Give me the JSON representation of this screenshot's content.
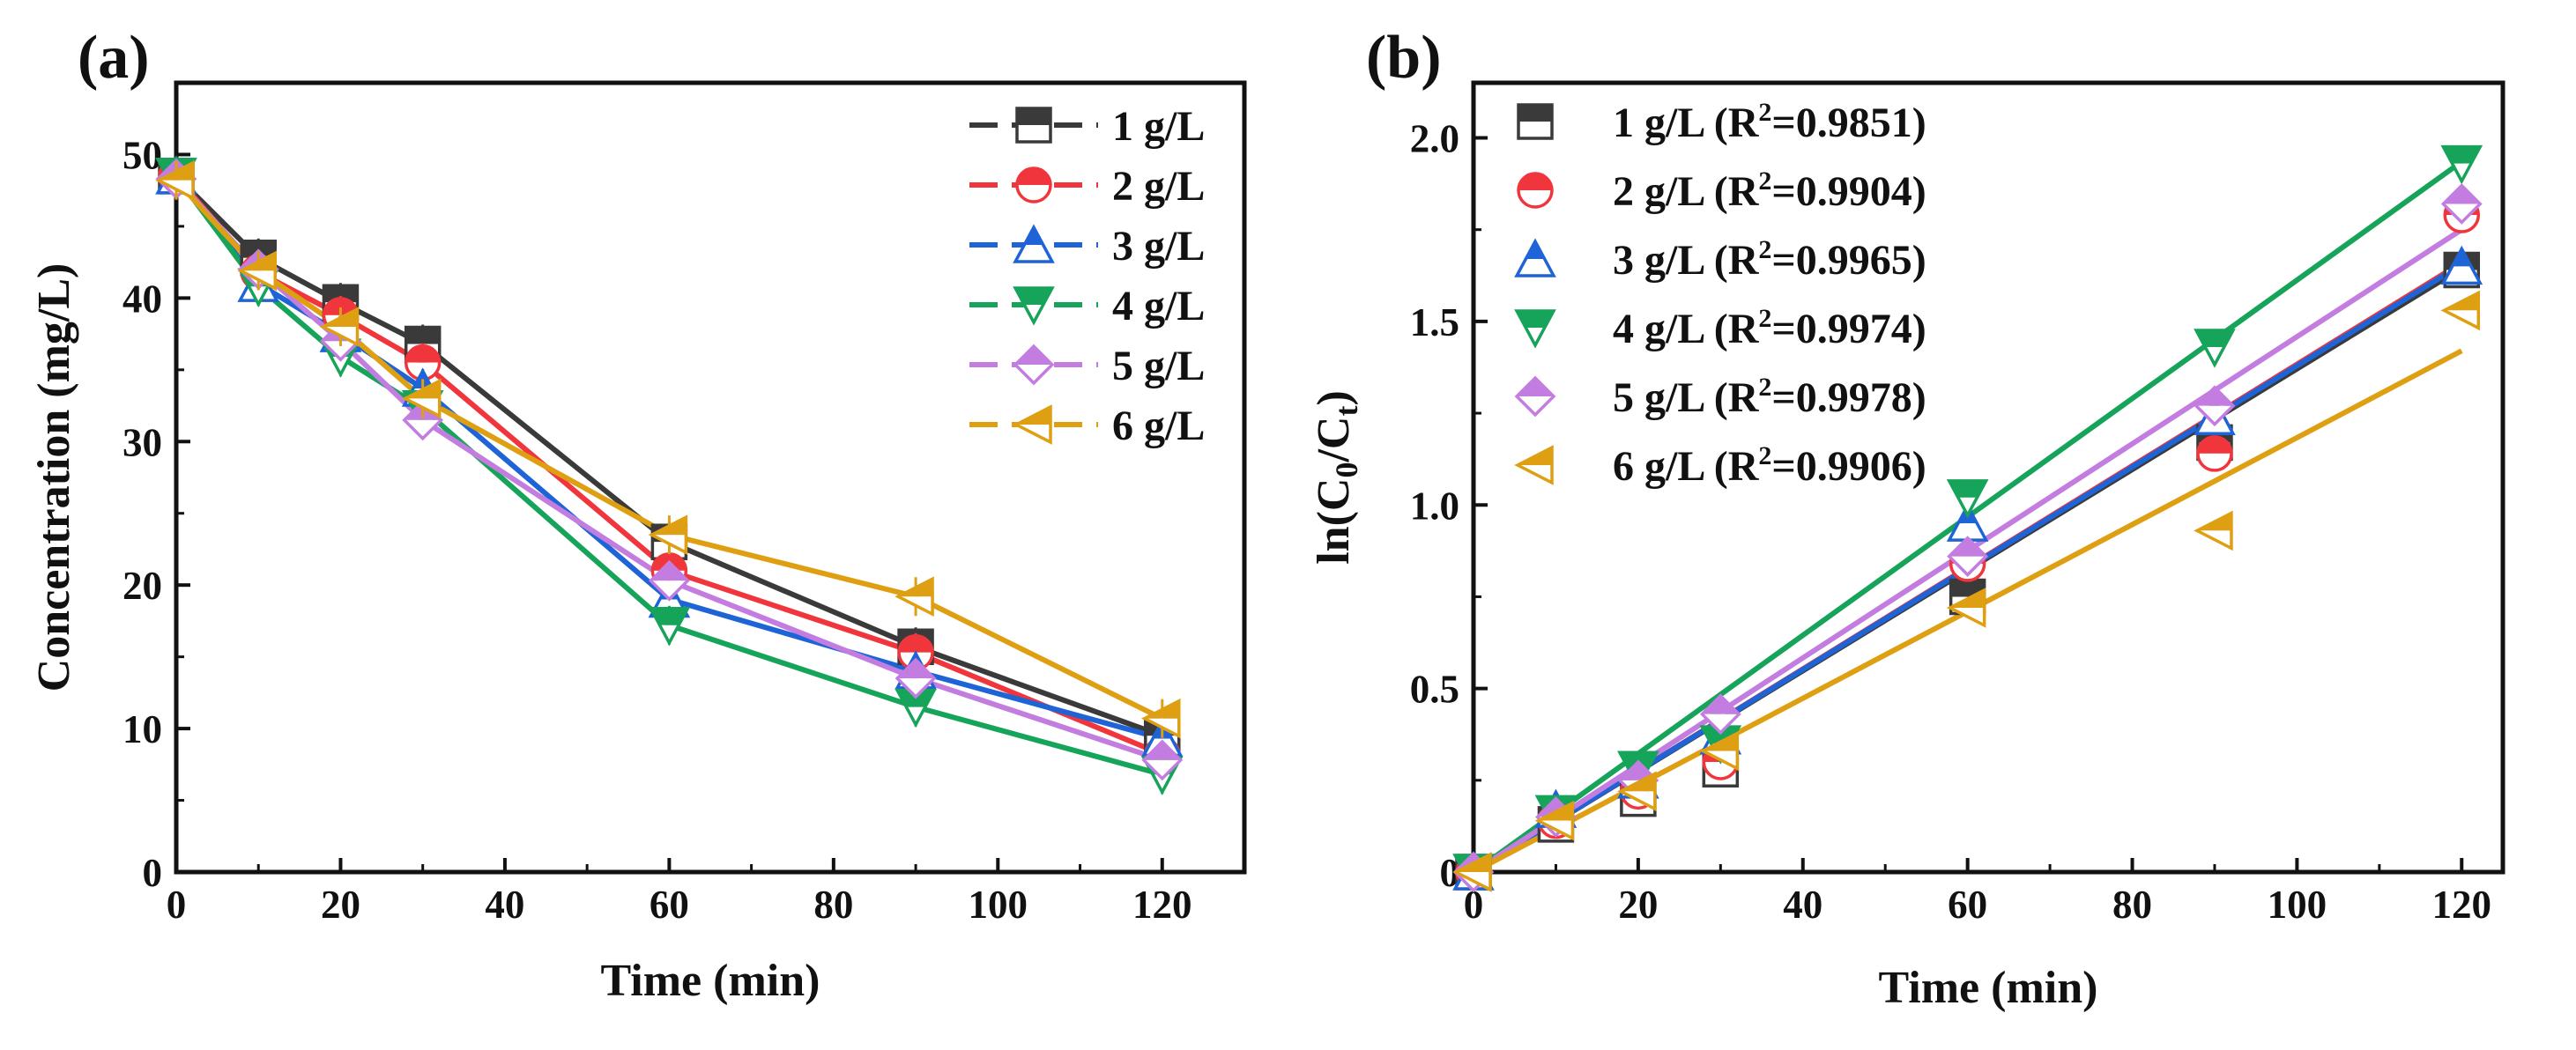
{
  "chart_data": [
    {
      "type": "line",
      "panel_label": "(a)",
      "xlabel": "Time (min)",
      "ylabel": "Concentration (mg/L)",
      "xlim": [
        0,
        130
      ],
      "ylim": [
        0,
        55
      ],
      "xticks": [
        0,
        20,
        40,
        60,
        80,
        100,
        120
      ],
      "yticks": [
        0,
        10,
        20,
        30,
        40,
        50
      ],
      "x": [
        0,
        10,
        20,
        30,
        60,
        90,
        120
      ],
      "legend_position": "top-right",
      "series": [
        {
          "name": "1 g/L",
          "marker": "square",
          "color": "#3a3a3a",
          "values": [
            48.5,
            42.8,
            39.7,
            36.8,
            23.0,
            15.7,
            9.5
          ]
        },
        {
          "name": "2 g/L",
          "marker": "circle",
          "color": "#f0363c",
          "values": [
            48.5,
            41.8,
            38.8,
            35.5,
            21.0,
            15.3,
            8.2
          ]
        },
        {
          "name": "3 g/L",
          "marker": "triangle-up",
          "color": "#1f64d6",
          "values": [
            48.5,
            41.0,
            37.5,
            33.7,
            19.0,
            14.0,
            9.3
          ]
        },
        {
          "name": "4 g/L",
          "marker": "triangle-down",
          "color": "#16a35a",
          "values": [
            48.5,
            40.8,
            35.9,
            32.3,
            17.2,
            11.5,
            6.8
          ]
        },
        {
          "name": "5 g/L",
          "marker": "diamond",
          "color": "#c37de0",
          "values": [
            48.3,
            42.0,
            37.0,
            31.5,
            20.3,
            13.5,
            7.8
          ]
        },
        {
          "name": "6 g/L",
          "marker": "triangle-left",
          "color": "#dea012",
          "values": [
            48.2,
            41.9,
            38.0,
            33.0,
            23.5,
            19.2,
            10.7
          ]
        }
      ]
    },
    {
      "type": "scatter",
      "panel_label": "(b)",
      "xlabel": "Time (min)",
      "ylabel_main": "ln(C",
      "ylabel_sub0": "0",
      "ylabel_mid": "/C",
      "ylabel_subt": "t",
      "ylabel_end": ")",
      "xlim": [
        0,
        125
      ],
      "ylim": [
        0,
        2.15
      ],
      "xticks": [
        0,
        20,
        40,
        60,
        80,
        100,
        120
      ],
      "yticks": [
        0,
        0.5,
        1.0,
        1.5,
        2.0
      ],
      "ytick_labels": [
        "0",
        "0.5",
        "1.0",
        "1.5",
        "2.0"
      ],
      "x": [
        0,
        10,
        20,
        30,
        60,
        90,
        120
      ],
      "legend_position": "top-left",
      "series": [
        {
          "name": "1 g/L",
          "r2_text": "=0.9851)",
          "marker": "square",
          "color": "#3a3a3a",
          "values": [
            0,
            0.13,
            0.2,
            0.28,
            0.75,
            1.17,
            1.64
          ],
          "fit": [
            0.0,
            1.645
          ]
        },
        {
          "name": "2 g/L",
          "r2_text": "=0.9904)",
          "marker": "circle",
          "color": "#f0363c",
          "values": [
            0,
            0.14,
            0.22,
            0.3,
            0.84,
            1.14,
            1.79
          ],
          "fit": [
            0.0,
            1.66
          ]
        },
        {
          "name": "3 g/L",
          "r2_text": "=0.9965)",
          "marker": "triangle-up",
          "color": "#1f64d6",
          "values": [
            0,
            0.17,
            0.25,
            0.37,
            0.95,
            1.24,
            1.65
          ],
          "fit": [
            0.0,
            1.655
          ]
        },
        {
          "name": "4 g/L",
          "r2_text": "=0.9974)",
          "marker": "triangle-down",
          "color": "#16a35a",
          "values": [
            0,
            0.16,
            0.28,
            0.35,
            1.02,
            1.43,
            1.93
          ],
          "fit": [
            0.0,
            1.935
          ]
        },
        {
          "name": "5 g/L",
          "r2_text": "=0.9978)",
          "marker": "diamond",
          "color": "#c37de0",
          "values": [
            0,
            0.15,
            0.25,
            0.43,
            0.86,
            1.27,
            1.82
          ],
          "fit": [
            0.0,
            1.75
          ]
        },
        {
          "name": "6 g/L",
          "r2_text": "=0.9906)",
          "marker": "triangle-left",
          "color": "#dea012",
          "values": [
            0,
            0.14,
            0.22,
            0.33,
            0.72,
            0.93,
            1.53
          ],
          "fit": [
            0.0,
            1.42
          ]
        }
      ],
      "legend_prefix": "(R",
      "legend_sup": "2"
    }
  ]
}
